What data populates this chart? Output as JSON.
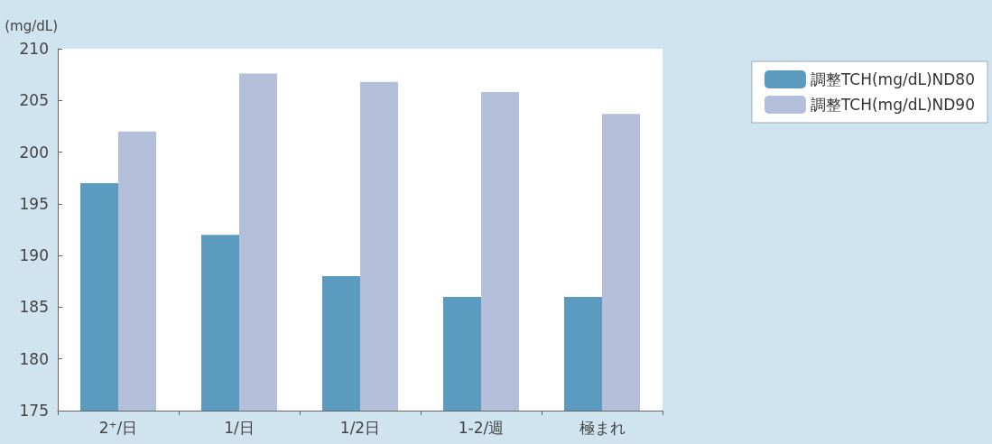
{
  "chart_data": {
    "type": "bar",
    "ylabel": "(mg/dL)",
    "categories": [
      "2⁺/日",
      "1/日",
      "1/2日",
      "1-2/週",
      "極まれ"
    ],
    "series": [
      {
        "name": "調整TCH(mg/dL)ND80",
        "color": "#5b9bbf",
        "values": [
          197,
          192,
          188,
          186,
          186
        ]
      },
      {
        "name": "調整TCH(mg/dL)ND90",
        "color": "#b4c0da",
        "values": [
          202,
          207.6,
          206.8,
          205.8,
          203.7
        ]
      }
    ],
    "ylim": [
      175,
      210
    ],
    "yticks": [
      175,
      180,
      185,
      190,
      195,
      200,
      205,
      210
    ],
    "grid": false,
    "legend": "top right"
  }
}
